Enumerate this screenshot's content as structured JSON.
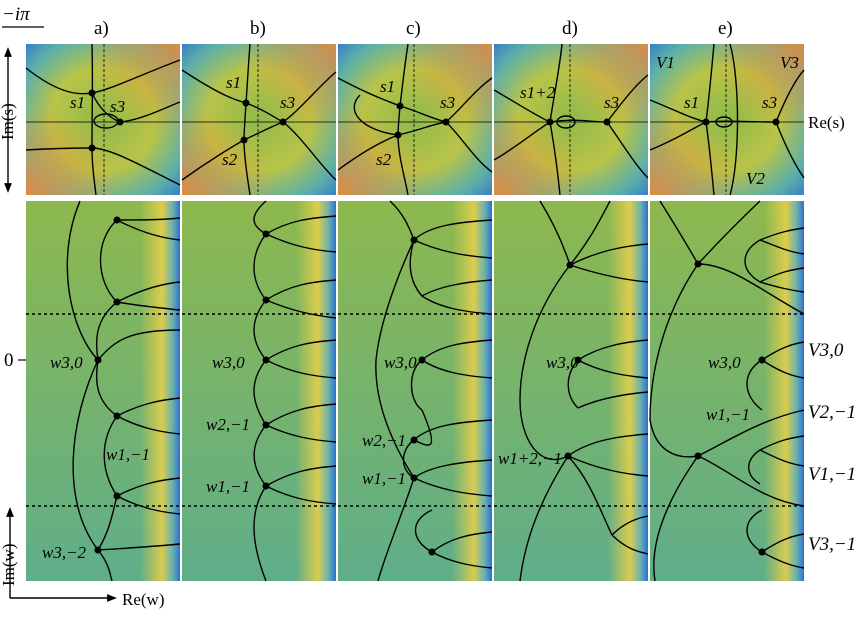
{
  "corner_label": "−iπ",
  "panel_letters": [
    "a)",
    "b)",
    "c)",
    "d)",
    "e)"
  ],
  "axes": {
    "top_left": "Im(s)",
    "top_right": "Re(s)",
    "bottom_left": "Im(w)",
    "bottom_bottom": "Re(w)",
    "zero_tick": "0"
  },
  "colors": {
    "orange": "#e8a33a",
    "yellow": "#e6cf4a",
    "green": "#8fb94c",
    "teal": "#5fae8a",
    "blue": "#2b6fd6",
    "curve": "#000000"
  },
  "top_labels": {
    "a": [
      "s1",
      "s3"
    ],
    "b": [
      "s1",
      "s3",
      "s2"
    ],
    "c": [
      "s1",
      "s3",
      "s2"
    ],
    "d": [
      "s1+2",
      "s3"
    ],
    "e": [
      "V1",
      "V3",
      "s1",
      "s3",
      "V2"
    ]
  },
  "bottom_labels": {
    "a": [
      "w3,0",
      "w1,−1",
      "w3,−2"
    ],
    "b": [
      "w3,0",
      "w2,−1",
      "w1,−1"
    ],
    "c": [
      "w3,0",
      "w2,−1",
      "w1,−1"
    ],
    "d": [
      "w3,0",
      "w1+2,−1"
    ],
    "e": [
      "w3,0",
      "w1,−1"
    ]
  },
  "right_labels": [
    "V3,0",
    "V2,−1",
    "V1,−1",
    "V3,−1"
  ]
}
